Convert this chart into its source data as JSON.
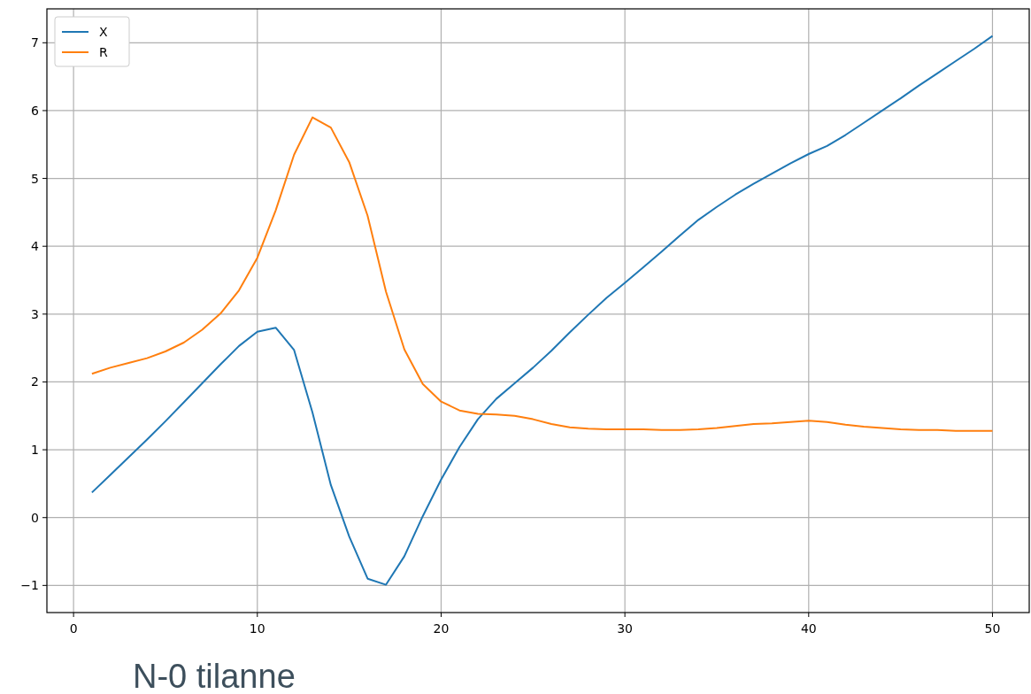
{
  "chart_data": {
    "type": "line",
    "x": [
      1,
      2,
      3,
      4,
      5,
      6,
      7,
      8,
      9,
      10,
      11,
      12,
      13,
      14,
      15,
      16,
      17,
      18,
      19,
      20,
      21,
      22,
      23,
      24,
      25,
      26,
      27,
      28,
      29,
      30,
      31,
      32,
      33,
      34,
      35,
      36,
      37,
      38,
      39,
      40,
      41,
      42,
      43,
      44,
      45,
      46,
      47,
      48,
      49,
      50
    ],
    "series": [
      {
        "name": "X",
        "color": "#1f77b4",
        "values": [
          0.37,
          0.63,
          0.89,
          1.15,
          1.42,
          1.7,
          1.98,
          2.26,
          2.53,
          2.74,
          2.8,
          2.47,
          1.55,
          0.48,
          -0.28,
          -0.9,
          -0.99,
          -0.57,
          0.02,
          0.56,
          1.04,
          1.45,
          1.75,
          1.98,
          2.21,
          2.46,
          2.73,
          2.99,
          3.24,
          3.46,
          3.69,
          3.92,
          4.16,
          4.39,
          4.58,
          4.76,
          4.92,
          5.07,
          5.22,
          5.36,
          5.48,
          5.64,
          5.82,
          6.0,
          6.18,
          6.37,
          6.55,
          6.73,
          6.91,
          7.1
        ]
      },
      {
        "name": "R",
        "color": "#ff7f0e",
        "values": [
          2.12,
          2.21,
          2.28,
          2.35,
          2.45,
          2.58,
          2.77,
          3.01,
          3.35,
          3.83,
          4.53,
          5.35,
          5.9,
          5.75,
          5.24,
          4.45,
          3.33,
          2.48,
          1.97,
          1.71,
          1.58,
          1.53,
          1.52,
          1.5,
          1.45,
          1.38,
          1.33,
          1.31,
          1.3,
          1.3,
          1.3,
          1.29,
          1.29,
          1.3,
          1.32,
          1.35,
          1.38,
          1.39,
          1.41,
          1.43,
          1.41,
          1.37,
          1.34,
          1.32,
          1.3,
          1.29,
          1.29,
          1.28,
          1.28,
          1.28
        ]
      }
    ],
    "xlim": [
      -1.45,
      52
    ],
    "ylim": [
      -1.4,
      7.5
    ],
    "xticks": [
      0,
      10,
      20,
      30,
      40,
      50
    ],
    "yticks": [
      -1,
      0,
      1,
      2,
      3,
      4,
      5,
      6,
      7
    ],
    "grid": true,
    "legend": "top left",
    "line_style": "solid",
    "marker": "none",
    "annotations": [
      "N-0 tilanne"
    ]
  }
}
